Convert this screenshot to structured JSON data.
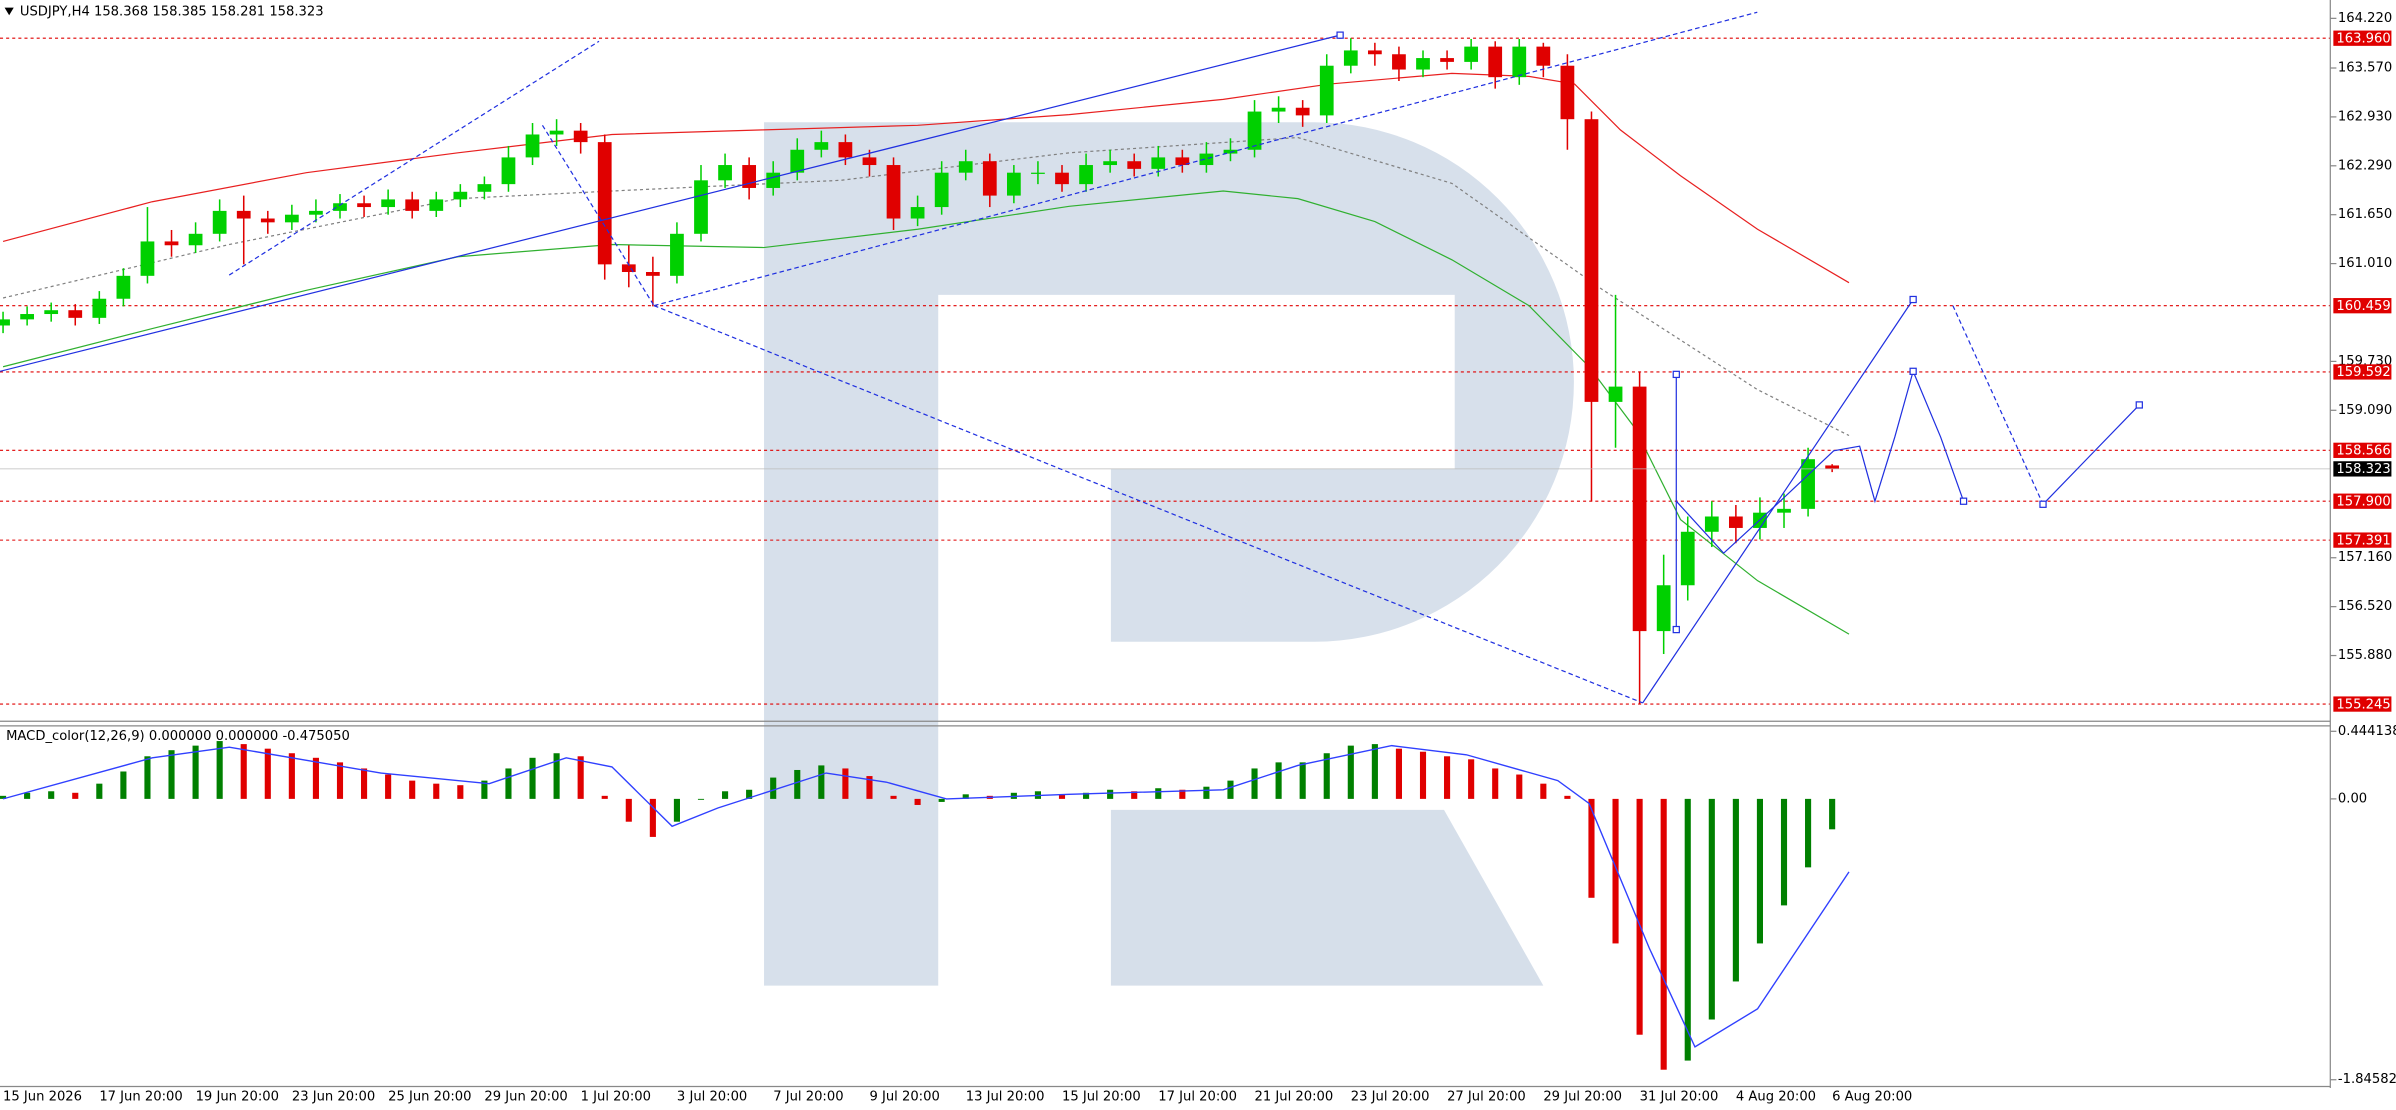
{
  "chart_data": [
    {
      "type": "candlestick",
      "title": "USDJPY,H4  158.368 158.385 158.281 158.323",
      "categories": [
        "15 Jun 2026",
        null,
        null,
        null,
        "17 Jun 20:00",
        null,
        null,
        null,
        "19 Jun 20:00",
        null,
        null,
        null,
        "23 Jun 20:00",
        null,
        null,
        null,
        "25 Jun 20:00",
        null,
        null,
        null,
        "29 Jun 20:00",
        null,
        null,
        null,
        "1 Jul 20:00",
        null,
        null,
        null,
        "3 Jul 20:00",
        null,
        null,
        null,
        "7 Jul 20:00",
        null,
        null,
        null,
        "9 Jul 20:00",
        null,
        null,
        null,
        "13 Jul 20:00",
        null,
        null,
        null,
        "15 Jul 20:00",
        null,
        null,
        null,
        "17 Jul 20:00",
        null,
        null,
        null,
        "21 Jul 20:00",
        null,
        null,
        null,
        "23 Jul 20:00",
        null,
        null,
        null,
        "27 Jul 20:00",
        null,
        null,
        null,
        "29 Jul 20:00",
        null,
        null,
        null,
        "31 Jul 20:00",
        null,
        null,
        null,
        "4 Aug 20:00",
        null,
        null,
        null,
        "6 Aug 20:00"
      ],
      "ohlc": [
        [
          160.2,
          160.38,
          160.1,
          160.28
        ],
        [
          160.28,
          160.45,
          160.2,
          160.35
        ],
        [
          160.35,
          160.5,
          160.25,
          160.4
        ],
        [
          160.4,
          160.48,
          160.2,
          160.3
        ],
        [
          160.3,
          160.65,
          160.22,
          160.55
        ],
        [
          160.55,
          160.95,
          160.45,
          160.85
        ],
        [
          160.85,
          161.75,
          160.75,
          161.3
        ],
        [
          161.3,
          161.45,
          161.1,
          161.25
        ],
        [
          161.25,
          161.55,
          161.15,
          161.4
        ],
        [
          161.4,
          161.85,
          161.3,
          161.7
        ],
        [
          161.7,
          161.9,
          161.0,
          161.6
        ],
        [
          161.6,
          161.7,
          161.4,
          161.55
        ],
        [
          161.55,
          161.78,
          161.45,
          161.65
        ],
        [
          161.65,
          161.85,
          161.55,
          161.7
        ],
        [
          161.7,
          161.92,
          161.6,
          161.8
        ],
        [
          161.8,
          161.9,
          161.62,
          161.75
        ],
        [
          161.75,
          161.98,
          161.65,
          161.85
        ],
        [
          161.85,
          161.95,
          161.6,
          161.7
        ],
        [
          161.7,
          161.95,
          161.62,
          161.85
        ],
        [
          161.85,
          162.05,
          161.75,
          161.95
        ],
        [
          161.95,
          162.15,
          161.85,
          162.05
        ],
        [
          162.05,
          162.55,
          161.95,
          162.4
        ],
        [
          162.4,
          162.85,
          162.3,
          162.7
        ],
        [
          162.7,
          162.9,
          162.55,
          162.75
        ],
        [
          162.75,
          162.85,
          162.45,
          162.6
        ],
        [
          162.6,
          162.7,
          160.8,
          161.0
        ],
        [
          161.0,
          161.25,
          160.7,
          160.9
        ],
        [
          160.9,
          161.1,
          160.45,
          160.85
        ],
        [
          160.85,
          161.55,
          160.75,
          161.4
        ],
        [
          161.4,
          162.3,
          161.3,
          162.1
        ],
        [
          162.1,
          162.45,
          162.0,
          162.3
        ],
        [
          162.3,
          162.4,
          161.85,
          162.0
        ],
        [
          162.0,
          162.35,
          161.9,
          162.2
        ],
        [
          162.2,
          162.65,
          162.1,
          162.5
        ],
        [
          162.5,
          162.75,
          162.4,
          162.6
        ],
        [
          162.6,
          162.7,
          162.3,
          162.4
        ],
        [
          162.4,
          162.5,
          162.15,
          162.3
        ],
        [
          162.3,
          162.4,
          161.45,
          161.6
        ],
        [
          161.6,
          161.9,
          161.5,
          161.75
        ],
        [
          161.75,
          162.35,
          161.65,
          162.2
        ],
        [
          162.2,
          162.5,
          162.1,
          162.35
        ],
        [
          162.35,
          162.45,
          161.75,
          161.9
        ],
        [
          161.9,
          162.3,
          161.8,
          162.2
        ],
        [
          162.2,
          162.35,
          162.05,
          162.2
        ],
        [
          162.2,
          162.3,
          161.95,
          162.05
        ],
        [
          162.05,
          162.45,
          161.95,
          162.3
        ],
        [
          162.3,
          162.5,
          162.2,
          162.35
        ],
        [
          162.35,
          162.45,
          162.15,
          162.25
        ],
        [
          162.25,
          162.55,
          162.15,
          162.4
        ],
        [
          162.4,
          162.5,
          162.2,
          162.3
        ],
        [
          162.3,
          162.6,
          162.2,
          162.45
        ],
        [
          162.45,
          162.65,
          162.35,
          162.5
        ],
        [
          162.5,
          163.15,
          162.4,
          163.0
        ],
        [
          163.0,
          163.2,
          162.85,
          163.05
        ],
        [
          163.05,
          163.15,
          162.8,
          162.95
        ],
        [
          162.95,
          163.75,
          162.85,
          163.6
        ],
        [
          163.6,
          163.96,
          163.5,
          163.8
        ],
        [
          163.8,
          163.9,
          163.6,
          163.75
        ],
        [
          163.75,
          163.85,
          163.4,
          163.55
        ],
        [
          163.55,
          163.8,
          163.45,
          163.7
        ],
        [
          163.7,
          163.8,
          163.55,
          163.65
        ],
        [
          163.65,
          163.95,
          163.55,
          163.85
        ],
        [
          163.85,
          163.92,
          163.3,
          163.45
        ],
        [
          163.45,
          163.95,
          163.35,
          163.85
        ],
        [
          163.85,
          163.9,
          163.45,
          163.6
        ],
        [
          163.6,
          163.75,
          162.5,
          162.9
        ],
        [
          162.9,
          163.0,
          157.9,
          159.2
        ],
        [
          159.2,
          160.6,
          158.6,
          159.4
        ],
        [
          159.4,
          159.6,
          155.245,
          156.2
        ],
        [
          156.2,
          157.2,
          155.9,
          156.8
        ],
        [
          156.8,
          157.7,
          156.6,
          157.5
        ],
        [
          157.5,
          157.9,
          157.3,
          157.7
        ],
        [
          157.7,
          157.85,
          157.35,
          157.55
        ],
        [
          157.55,
          157.95,
          157.4,
          157.75
        ],
        [
          157.75,
          158.0,
          157.55,
          157.8
        ],
        [
          157.8,
          158.6,
          157.7,
          158.45
        ],
        [
          158.368,
          158.385,
          158.281,
          158.323
        ]
      ],
      "up_color": "#00d000",
      "down_color": "#e00000",
      "ylim": [
        155.06,
        164.4
      ],
      "yticks": [
        {
          "value": 164.22,
          "label": "164.220"
        },
        {
          "value": 163.57,
          "label": "163.570"
        },
        {
          "value": 162.93,
          "label": "162.930"
        },
        {
          "value": 162.29,
          "label": "162.290"
        },
        {
          "value": 161.65,
          "label": "161.650"
        },
        {
          "value": 161.01,
          "label": "161.010"
        },
        {
          "value": 159.73,
          "label": "159.730"
        },
        {
          "value": 159.09,
          "label": "159.090"
        },
        {
          "value": 157.16,
          "label": "157.160"
        },
        {
          "value": 156.52,
          "label": "156.520"
        },
        {
          "value": 155.88,
          "label": "155.880"
        }
      ],
      "levels": [
        {
          "value": 163.96,
          "label": "163.960"
        },
        160.459,
        159.592,
        158.566,
        {
          "value": 157.9,
          "label": "157.900"
        },
        157.391,
        155.245
      ],
      "level_color": "#e00000",
      "current_price": 158.323,
      "overlays": [
        {
          "color": "#e82020",
          "style": "solid",
          "x": [
            0,
            6.2,
            12.6,
            18.9,
            25.3,
            31.6,
            38,
            44.3,
            50.7,
            55.1,
            60.2,
            63.4,
            65.3,
            67.2,
            69.7,
            72.9,
            76.7
          ],
          "values": [
            161.3,
            161.82,
            162.2,
            162.46,
            162.7,
            162.76,
            162.82,
            162.96,
            163.16,
            163.36,
            163.5,
            163.46,
            163.36,
            162.76,
            162.16,
            161.46,
            160.76
          ]
        },
        {
          "color": "#30b030",
          "style": "solid",
          "x": [
            0,
            6.2,
            12.6,
            18.9,
            25.3,
            31.6,
            38,
            44.3,
            50.7,
            53.8,
            57,
            60.2,
            63.4,
            65.9,
            67.8,
            69.7,
            72.9,
            76.7
          ],
          "values": [
            159.66,
            160.16,
            160.66,
            161.1,
            161.26,
            161.22,
            161.46,
            161.76,
            161.96,
            161.86,
            161.56,
            161.06,
            160.46,
            159.66,
            158.86,
            157.66,
            156.86,
            156.16
          ]
        },
        {
          "color": "#808080",
          "style": "dotted",
          "x": [
            0,
            9.4,
            18.9,
            25.3,
            34.8,
            44.3,
            53.8,
            60.2,
            66.5,
            72.9,
            76.7
          ],
          "values": [
            160.56,
            161.26,
            161.86,
            161.96,
            162.1,
            162.46,
            162.66,
            162.06,
            160.66,
            159.36,
            158.76
          ]
        }
      ]
    },
    {
      "type": "macd",
      "title": "MACD_color(12,26,9) 0.000000 0.000000 -0.475050",
      "values": [
        0.02,
        0.04,
        0.05,
        0.04,
        0.1,
        0.18,
        0.28,
        0.32,
        0.35,
        0.38,
        0.36,
        0.33,
        0.3,
        0.27,
        0.24,
        0.2,
        0.16,
        0.12,
        0.1,
        0.09,
        0.12,
        0.2,
        0.27,
        0.3,
        0.28,
        0.02,
        -0.15,
        -0.25,
        -0.15,
        0.0,
        0.05,
        0.06,
        0.14,
        0.19,
        0.22,
        0.2,
        0.15,
        0.02,
        -0.04,
        -0.02,
        0.03,
        0.02,
        0.04,
        0.05,
        0.03,
        0.04,
        0.06,
        0.05,
        0.07,
        0.06,
        0.08,
        0.12,
        0.2,
        0.24,
        0.24,
        0.3,
        0.35,
        0.36,
        0.33,
        0.31,
        0.28,
        0.26,
        0.2,
        0.16,
        0.1,
        0.02,
        -0.65,
        -0.95,
        -1.55,
        -1.78,
        -1.72,
        -1.45,
        -1.2,
        -0.95,
        -0.7,
        -0.45,
        -0.2
      ],
      "up_color": "#008000",
      "down_color": "#e00000",
      "signal": {
        "color": "#3040ff",
        "x": [
          0,
          6.2,
          9.4,
          15.7,
          20.2,
          23.4,
          25.3,
          27.8,
          29.7,
          34.2,
          36.7,
          39.2,
          44.3,
          50.7,
          53.8,
          57.7,
          60.8,
          64.6,
          65.9,
          68.4,
          70.3,
          72.9,
          76.7
        ],
        "values": [
          0,
          0.27,
          0.34,
          0.17,
          0.1,
          0.27,
          0.21,
          -0.18,
          -0.06,
          0.17,
          0.11,
          0,
          0.03,
          0.06,
          0.22,
          0.35,
          0.29,
          0.12,
          -0.03,
          -0.98,
          -1.63,
          -1.38,
          -0.48
        ]
      },
      "ylim": [
        -1.88,
        0.46
      ],
      "yticks": [
        0.444138,
        {
          "value": 0,
          "label": "0.00"
        },
        -1.845827
      ]
    }
  ]
}
